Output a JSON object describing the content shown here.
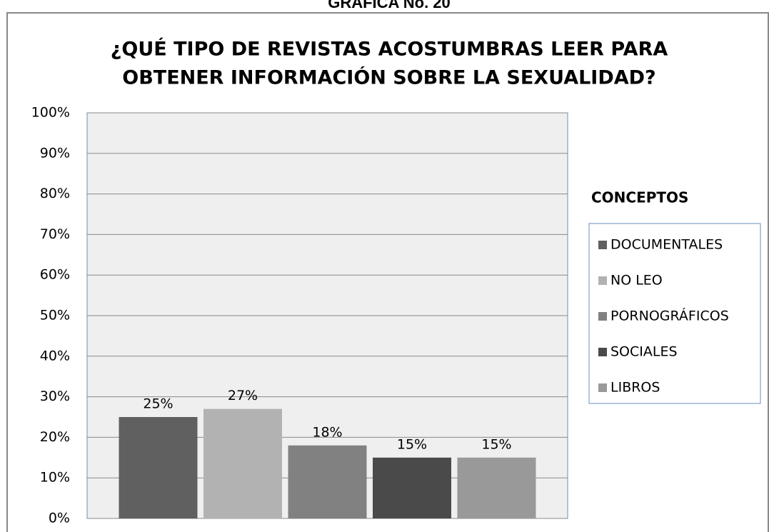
{
  "header": "GRAFICA No. 20",
  "chart_data": {
    "type": "bar",
    "title": [
      "¿QUÉ TIPO DE REVISTAS ACOSTUMBRAS LEER PARA",
      "OBTENER INFORMACIÓN SOBRE LA SEXUALIDAD?"
    ],
    "legend_title": "CONCEPTOS",
    "categories": [
      "DOCUMENTALES",
      "NO LEO",
      "PORNOGRÁFICOS",
      "SOCIALES",
      "LIBROS"
    ],
    "values": [
      25,
      27,
      18,
      15,
      15
    ],
    "value_labels": [
      "25%",
      "27%",
      "18%",
      "15%",
      "15%"
    ],
    "colors": [
      "#606060",
      "#b2b2b2",
      "#818181",
      "#4a4a4a",
      "#999999"
    ],
    "ylim": [
      0,
      100
    ],
    "yticks": [
      {
        "value": 0,
        "label": "0%"
      },
      {
        "value": 10,
        "label": "10%"
      },
      {
        "value": 20,
        "label": "20%"
      },
      {
        "value": 30,
        "label": "30%"
      },
      {
        "value": 40,
        "label": "40%"
      },
      {
        "value": 50,
        "label": "50%"
      },
      {
        "value": 60,
        "label": "60%"
      },
      {
        "value": 70,
        "label": "70%"
      },
      {
        "value": 80,
        "label": "80%"
      },
      {
        "value": 90,
        "label": "90%"
      },
      {
        "value": 100,
        "label": "100%"
      }
    ],
    "grid": true,
    "legend": "right"
  }
}
